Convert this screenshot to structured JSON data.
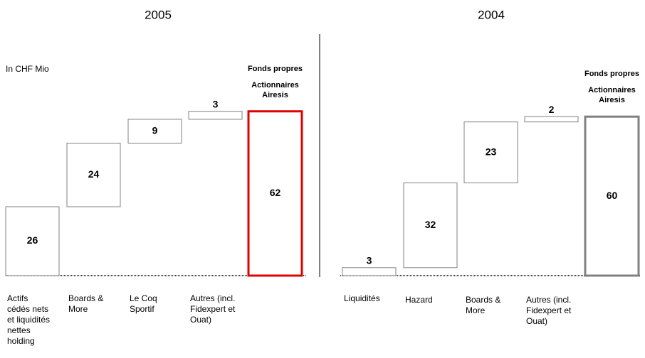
{
  "chart_data": [
    {
      "type": "waterfall",
      "title": "2005",
      "annotation": "In CHF Mio",
      "categories": [
        "Actifs cédés nets et liquidités nettes holding",
        "Boards & More",
        "Le Coq Sportif",
        "Autres (incl. Fidexpert et Ouat)"
      ],
      "values": [
        26,
        24,
        9,
        3
      ],
      "total_label": [
        "Fonds propres",
        "Actionnaires Airesis"
      ],
      "total": 62,
      "color": "#808080",
      "total_color": "#e00000"
    },
    {
      "type": "waterfall",
      "title": "2004",
      "categories": [
        "Liquidités",
        "Hazard",
        "Boards & More",
        "Autres (incl. Fidexpert et Ouat)"
      ],
      "values": [
        3,
        32,
        23,
        2
      ],
      "total_label": [
        "Fonds propres",
        "Actionnaires Airesis"
      ],
      "total": 60,
      "color": "#808080",
      "total_color": "#808080"
    }
  ]
}
